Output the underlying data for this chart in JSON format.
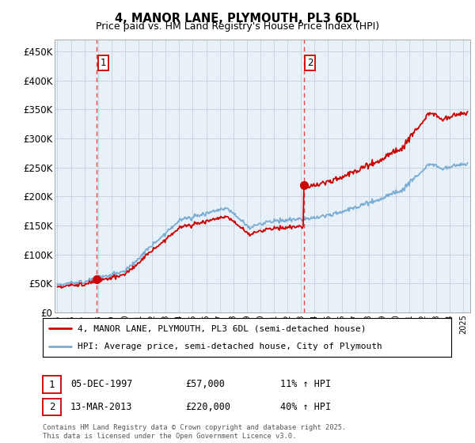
{
  "title": "4, MANOR LANE, PLYMOUTH, PL3 6DL",
  "subtitle": "Price paid vs. HM Land Registry's House Price Index (HPI)",
  "ylabel_ticks": [
    "£0",
    "£50K",
    "£100K",
    "£150K",
    "£200K",
    "£250K",
    "£300K",
    "£350K",
    "£400K",
    "£450K"
  ],
  "ytick_vals": [
    0,
    50000,
    100000,
    150000,
    200000,
    250000,
    300000,
    350000,
    400000,
    450000
  ],
  "ylim": [
    0,
    470000
  ],
  "xlim_start": 1994.8,
  "xlim_end": 2025.5,
  "purchase1": {
    "date": 1997.92,
    "price": 57000,
    "label": "1"
  },
  "purchase2": {
    "date": 2013.2,
    "price": 220000,
    "label": "2"
  },
  "legend_line1": "4, MANOR LANE, PLYMOUTH, PL3 6DL (semi-detached house)",
  "legend_line2": "HPI: Average price, semi-detached house, City of Plymouth",
  "annotation1_date": "05-DEC-1997",
  "annotation1_price": "£57,000",
  "annotation1_hpi": "11% ↑ HPI",
  "annotation2_date": "13-MAR-2013",
  "annotation2_price": "£220,000",
  "annotation2_hpi": "40% ↑ HPI",
  "footer": "Contains HM Land Registry data © Crown copyright and database right 2025.\nThis data is licensed under the Open Government Licence v3.0.",
  "color_red": "#cc0000",
  "color_blue": "#7aadd4",
  "color_dashed": "#ee4444",
  "chart_bg": "#e8f0f8",
  "background_color": "#ffffff",
  "grid_color": "#c8d4e0"
}
